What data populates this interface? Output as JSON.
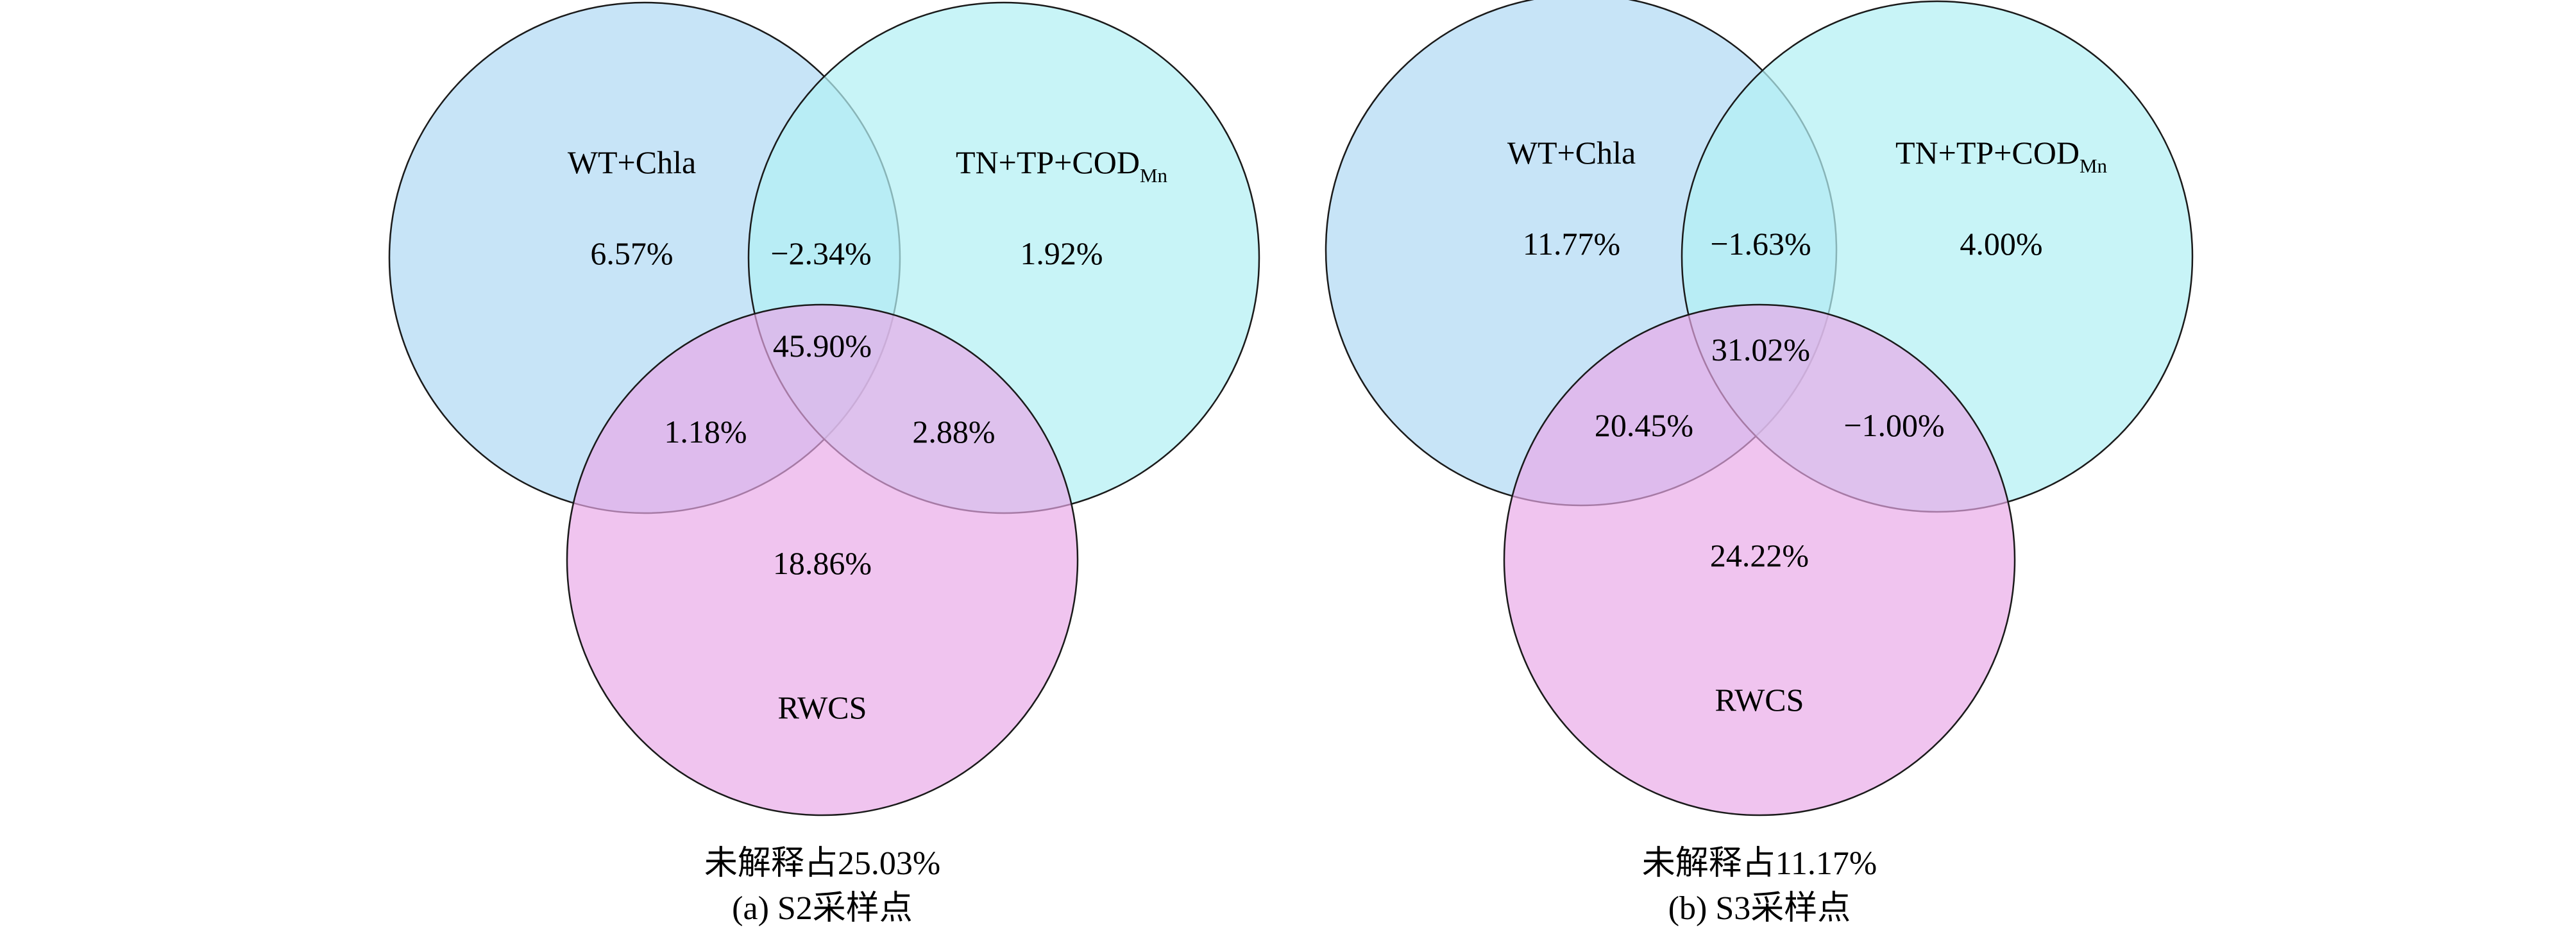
{
  "colors": {
    "wt_chla_circle": "#c6e3f7",
    "tn_tp_cod_circle": "#c8f3f6",
    "rwcs_circle": "#f0c4ee",
    "outline": "#1a1a1a"
  },
  "panels": [
    {
      "set_labels": {
        "a": "WT+Chla",
        "b_main": "TN+TP+COD",
        "b_sub": "Mn",
        "c": "RWCS"
      },
      "values": {
        "a_only": "6.57%",
        "ab": "−2.34%",
        "b_only": "1.92%",
        "abc": "45.90%",
        "ac": "1.18%",
        "bc": "2.88%",
        "c_only": "18.86%"
      },
      "unexplained": "未解释占25.03%",
      "caption": "(a) S2采样点"
    },
    {
      "set_labels": {
        "a": "WT+Chla",
        "b_main": "TN+TP+COD",
        "b_sub": "Mn",
        "c": "RWCS"
      },
      "values": {
        "a_only": "11.77%",
        "ab": "−1.63%",
        "b_only": "4.00%",
        "abc": "31.02%",
        "ac": "20.45%",
        "bc": "−1.00%",
        "c_only": "24.22%"
      },
      "unexplained": "未解释占11.17%",
      "caption": "(b) S3采样点"
    }
  ]
}
